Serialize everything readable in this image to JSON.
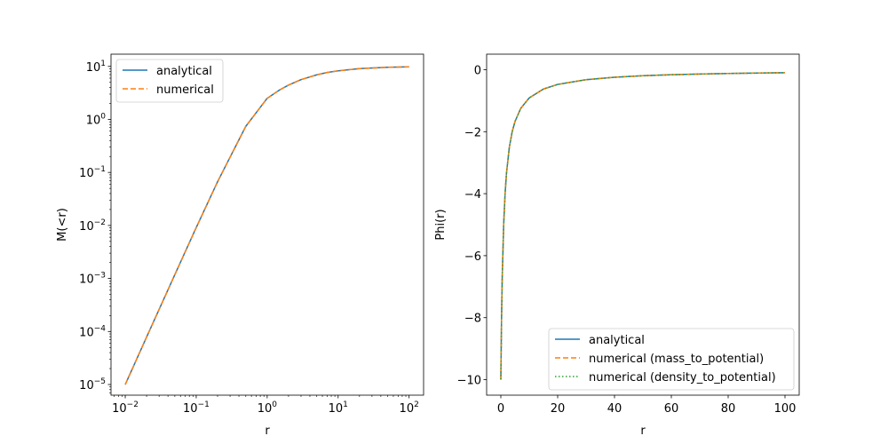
{
  "chart_data": [
    {
      "type": "line",
      "xlabel": "r",
      "ylabel": "M(<r)",
      "xscale": "log",
      "yscale": "log",
      "xlim": [
        0.0063,
        160
      ],
      "ylim": [
        6.3e-06,
        17
      ],
      "xticks": [
        {
          "value": 0.01,
          "base": "10",
          "exp": "−2"
        },
        {
          "value": 0.1,
          "base": "10",
          "exp": "−1"
        },
        {
          "value": 1,
          "base": "10",
          "exp": "0"
        },
        {
          "value": 10,
          "base": "10",
          "exp": "1"
        },
        {
          "value": 100,
          "base": "10",
          "exp": "2"
        }
      ],
      "yticks": [
        {
          "value": 1e-05,
          "base": "10",
          "exp": "−5"
        },
        {
          "value": 0.0001,
          "base": "10",
          "exp": "−4"
        },
        {
          "value": 0.001,
          "base": "10",
          "exp": "−3"
        },
        {
          "value": 0.01,
          "base": "10",
          "exp": "−2"
        },
        {
          "value": 0.1,
          "base": "10",
          "exp": "−1"
        },
        {
          "value": 1,
          "base": "10",
          "exp": "0"
        },
        {
          "value": 10,
          "base": "10",
          "exp": "1"
        }
      ],
      "grid": false,
      "legend": "upper-left",
      "x": [
        0.01,
        0.02,
        0.05,
        0.1,
        0.2,
        0.5,
        1,
        1.5,
        2,
        3,
        5,
        7,
        10,
        20,
        50,
        100
      ],
      "series": [
        {
          "name": "analytical",
          "color": "#1f77b4",
          "style": "solid",
          "values": [
            1e-05,
            7.85e-05,
            0.00118,
            0.00909,
            0.0667,
            0.741,
            2.5,
            3.6,
            4.44,
            5.63,
            6.94,
            7.66,
            8.26,
            9.07,
            9.61,
            9.8
          ]
        },
        {
          "name": "numerical",
          "color": "#ff7f0e",
          "style": "dashed",
          "values": [
            1e-05,
            7.85e-05,
            0.00118,
            0.00909,
            0.0667,
            0.741,
            2.5,
            3.6,
            4.44,
            5.63,
            6.94,
            7.66,
            8.26,
            9.07,
            9.61,
            9.8
          ]
        }
      ]
    },
    {
      "type": "line",
      "xlabel": "r",
      "ylabel": "Phi(r)",
      "xscale": "linear",
      "yscale": "linear",
      "xlim": [
        -5,
        105
      ],
      "ylim": [
        -10.5,
        0.5
      ],
      "xticks": [
        {
          "value": 0,
          "label": "0"
        },
        {
          "value": 20,
          "label": "20"
        },
        {
          "value": 40,
          "label": "40"
        },
        {
          "value": 60,
          "label": "60"
        },
        {
          "value": 80,
          "label": "80"
        },
        {
          "value": 100,
          "label": "100"
        }
      ],
      "yticks": [
        {
          "value": 0,
          "label": "0"
        },
        {
          "value": -2,
          "label": "−2"
        },
        {
          "value": -4,
          "label": "−4"
        },
        {
          "value": -6,
          "label": "−6"
        },
        {
          "value": -8,
          "label": "−8"
        },
        {
          "value": -10,
          "label": "−10"
        }
      ],
      "grid": false,
      "legend": "lower-right",
      "x": [
        0,
        0.25,
        0.5,
        1,
        1.5,
        2,
        3,
        4,
        5,
        7,
        10,
        15,
        20,
        30,
        40,
        50,
        60,
        70,
        80,
        90,
        100
      ],
      "series": [
        {
          "name": "analytical",
          "color": "#1f77b4",
          "style": "solid",
          "values": [
            -10,
            -8,
            -6.67,
            -5,
            -4,
            -3.33,
            -2.5,
            -2,
            -1.67,
            -1.25,
            -0.91,
            -0.625,
            -0.476,
            -0.323,
            -0.244,
            -0.196,
            -0.164,
            -0.141,
            -0.123,
            -0.11,
            -0.099
          ]
        },
        {
          "name": "numerical (mass_to_potential)",
          "color": "#ff7f0e",
          "style": "dashed",
          "values": [
            -10,
            -8,
            -6.67,
            -5,
            -4,
            -3.33,
            -2.5,
            -2,
            -1.67,
            -1.25,
            -0.91,
            -0.625,
            -0.476,
            -0.323,
            -0.244,
            -0.196,
            -0.164,
            -0.141,
            -0.123,
            -0.11,
            -0.099
          ]
        },
        {
          "name": "numerical (density_to_potential)",
          "color": "#2ca02c",
          "style": "dotted",
          "values": [
            -10,
            -8,
            -6.67,
            -5,
            -4,
            -3.33,
            -2.5,
            -2,
            -1.67,
            -1.25,
            -0.91,
            -0.625,
            -0.476,
            -0.323,
            -0.244,
            -0.196,
            -0.164,
            -0.141,
            -0.123,
            -0.11,
            -0.099
          ]
        }
      ]
    }
  ]
}
